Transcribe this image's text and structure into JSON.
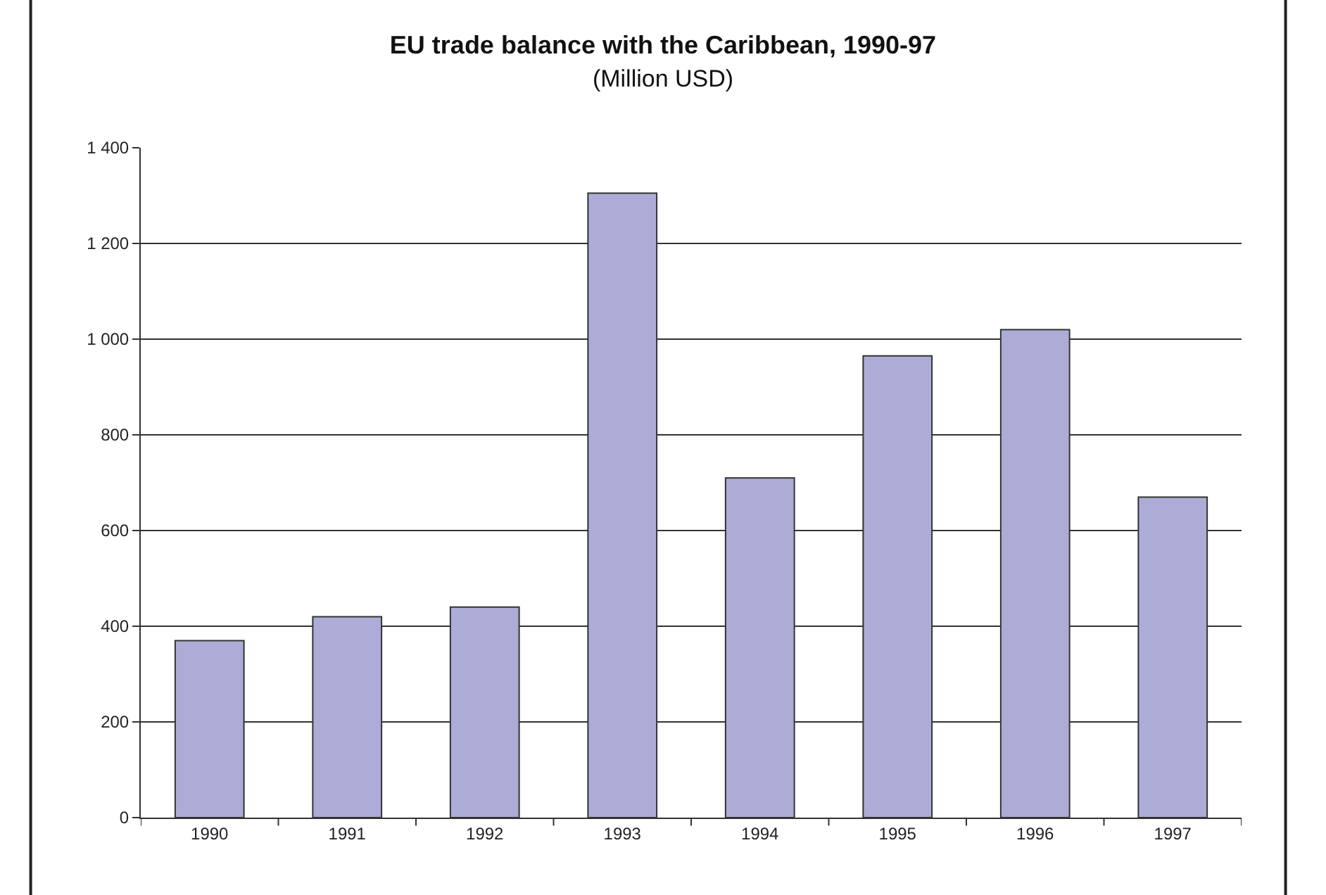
{
  "chart_data": {
    "type": "bar",
    "title": "EU trade balance with the Caribbean, 1990-97",
    "subtitle": "(Million USD)",
    "categories": [
      "1990",
      "1991",
      "1992",
      "1993",
      "1994",
      "1995",
      "1996",
      "1997"
    ],
    "values": [
      370,
      420,
      440,
      1305,
      710,
      965,
      1020,
      670
    ],
    "color": "#acacd6",
    "ylim": [
      0,
      1400
    ],
    "yticks": [
      0,
      200,
      400,
      600,
      800,
      {
        "value": 1000,
        "label": "1 000"
      },
      {
        "value": 1200,
        "label": "1 200"
      },
      {
        "value": 1400,
        "label": "1 400"
      }
    ],
    "grid": "y"
  }
}
